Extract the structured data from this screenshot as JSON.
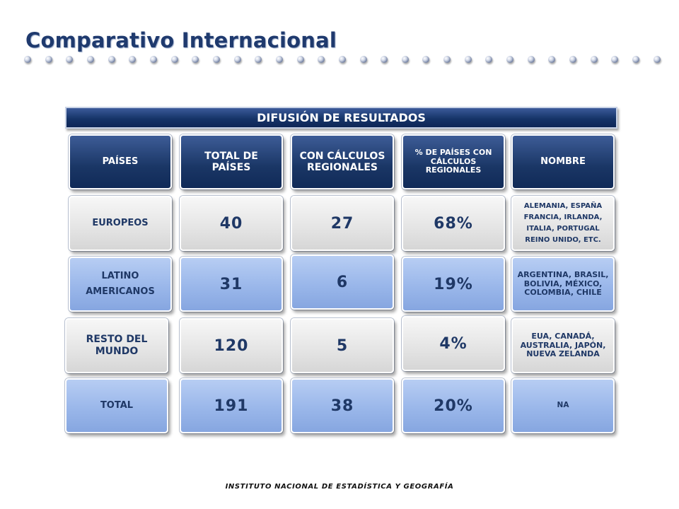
{
  "title": "Comparativo Internacional",
  "banner": "DIFUSIÓN DE RESULTADOS",
  "headers": {
    "paises": "PAÍSES",
    "total": "TOTAL DE PAÍSES",
    "con_calculos": "CON CÁLCULOS REGIONALES",
    "porcentaje": "% DE PAÍSES CON CÁLCULOS REGIONALES",
    "nombre": "NOMBRE"
  },
  "rows": [
    {
      "region": "EUROPEOS",
      "total": "40",
      "con_calculos": "27",
      "porcentaje": "68%",
      "nombres": "ALEMANIA, ESPAÑA FRANCIA, IRLANDA, ITALIA, PORTUGAL REINO UNIDO, ETC."
    },
    {
      "region": "LATINO AMERICANOS",
      "total": "31",
      "con_calculos": "6",
      "porcentaje": "19%",
      "nombres": "ARGENTINA, BRASIL, BOLIVIA, MÉXICO, COLOMBIA, CHILE"
    },
    {
      "region": "RESTO DEL MUNDO",
      "total": "120",
      "con_calculos": "5",
      "porcentaje": "4%",
      "nombres": "EUA, CANADÁ, AUSTRALIA, JAPÓN, NUEVA ZELANDA"
    },
    {
      "region": "TOTAL",
      "total": "191",
      "con_calculos": "38",
      "porcentaje": "20%",
      "nombres": "NA"
    }
  ],
  "footer": "INSTITUTO NACIONAL DE ESTADÍSTICA Y GEOGRAFÍA",
  "colors": {
    "navy": "#1a3665",
    "light_blue": "#9ab7ea",
    "gray": "#e4e4e4",
    "title": "#1f3a6e"
  }
}
